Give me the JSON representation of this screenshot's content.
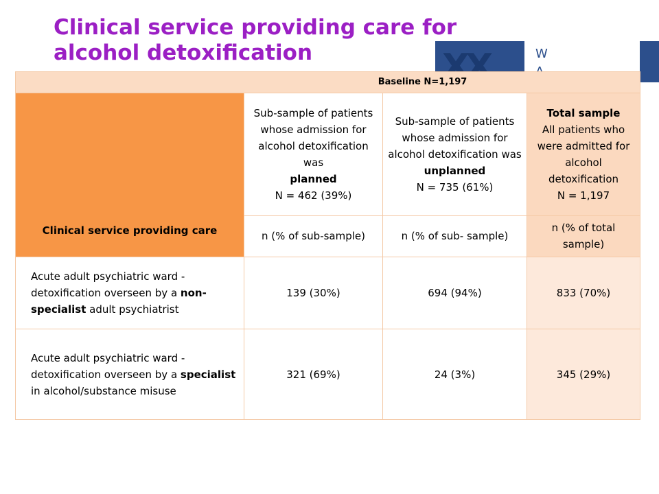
{
  "slide": {
    "title_line1": "Clinical service providing care for",
    "title_line2": "alcohol detoxification"
  },
  "logo": {
    "glyph": "XX",
    "text_line1": "W",
    "text_line2": "A",
    "colors": {
      "primary": "#2c4f8c"
    }
  },
  "table": {
    "band_label": "Baseline N=1,197",
    "row_header": "Clinical service providing care",
    "col_planned": {
      "desc": "Sub-sample of patients whose admission for alcohol detoxification was",
      "emphasis": "planned",
      "n": "N = 462 (39%)",
      "unit": "n (% of sub-sample)"
    },
    "col_unplanned": {
      "desc": "Sub-sample of patients whose admission for alcohol detoxification was",
      "emphasis": "unplanned",
      "n": "N = 735 (61%)",
      "unit": "n (% of sub- sample)"
    },
    "col_total": {
      "title": "Total sample",
      "desc": "All patients who were admitted for alcohol detoxification",
      "n": "N = 1,197",
      "unit": "n (% of total sample)"
    },
    "rows": [
      {
        "label_pre": "Acute adult psychiatric ward - detoxification overseen by a",
        "label_bold": "non-specialist",
        "label_post": "adult psychiatrist",
        "planned": "139 (30%)",
        "unplanned": "694 (94%)",
        "total": "833 (70%)"
      },
      {
        "label_pre": "Acute adult psychiatric ward - detoxification overseen by a",
        "label_bold": "specialist",
        "label_post": "in alcohol/substance misuse",
        "planned": "321 (69%)",
        "unplanned": "24 (3%)",
        "total": "345 (29%)"
      }
    ]
  },
  "colors": {
    "title": "#9b1fc4",
    "header_orange": "#f79646",
    "band_peach": "#fbdcc4",
    "total_column": "#fde9db"
  }
}
